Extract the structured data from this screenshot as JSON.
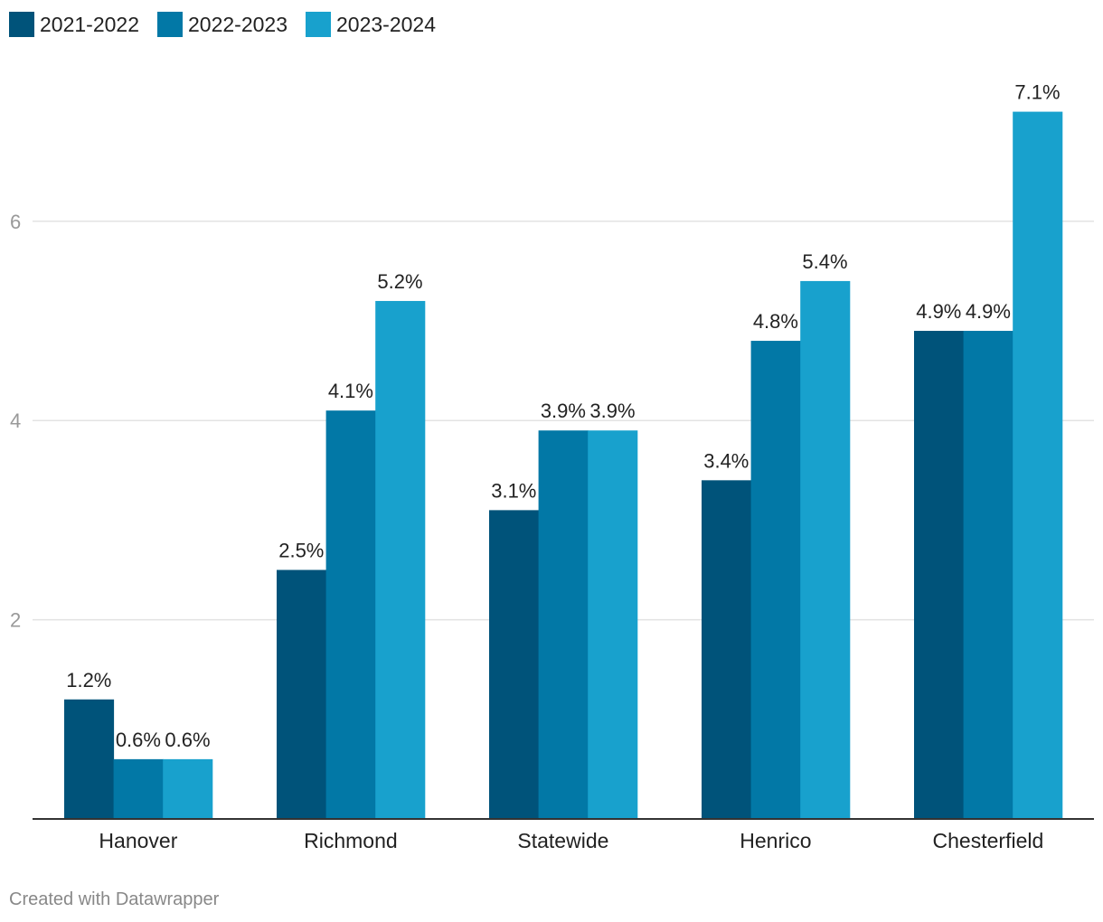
{
  "chart_data": {
    "type": "bar",
    "title": "",
    "xlabel": "",
    "ylabel": "",
    "categories": [
      "Hanover",
      "Richmond",
      "Statewide",
      "Henrico",
      "Chesterfield"
    ],
    "series": [
      {
        "name": "2021-2022",
        "color": "#00537a",
        "values": [
          1.2,
          2.5,
          3.1,
          3.4,
          4.9
        ],
        "labels": [
          "1.2%",
          "2.5%",
          "3.1%",
          "3.4%",
          "4.9%"
        ]
      },
      {
        "name": "2022-2023",
        "color": "#0278a6",
        "values": [
          0.6,
          4.1,
          3.9,
          4.8,
          4.9
        ],
        "labels": [
          "0.6%",
          "4.1%",
          "3.9%",
          "4.8%",
          "4.9%"
        ]
      },
      {
        "name": "2023-2024",
        "color": "#18a1cd",
        "values": [
          0.6,
          5.2,
          3.9,
          5.4,
          7.1
        ],
        "labels": [
          "0.6%",
          "5.2%",
          "3.9%",
          "5.4%",
          "7.1%"
        ]
      }
    ],
    "yticks": [
      2,
      4,
      6
    ],
    "ylim": [
      0,
      7.3
    ],
    "grid": true,
    "legend": "top-left"
  },
  "footer": {
    "credit": "Created with Datawrapper"
  }
}
